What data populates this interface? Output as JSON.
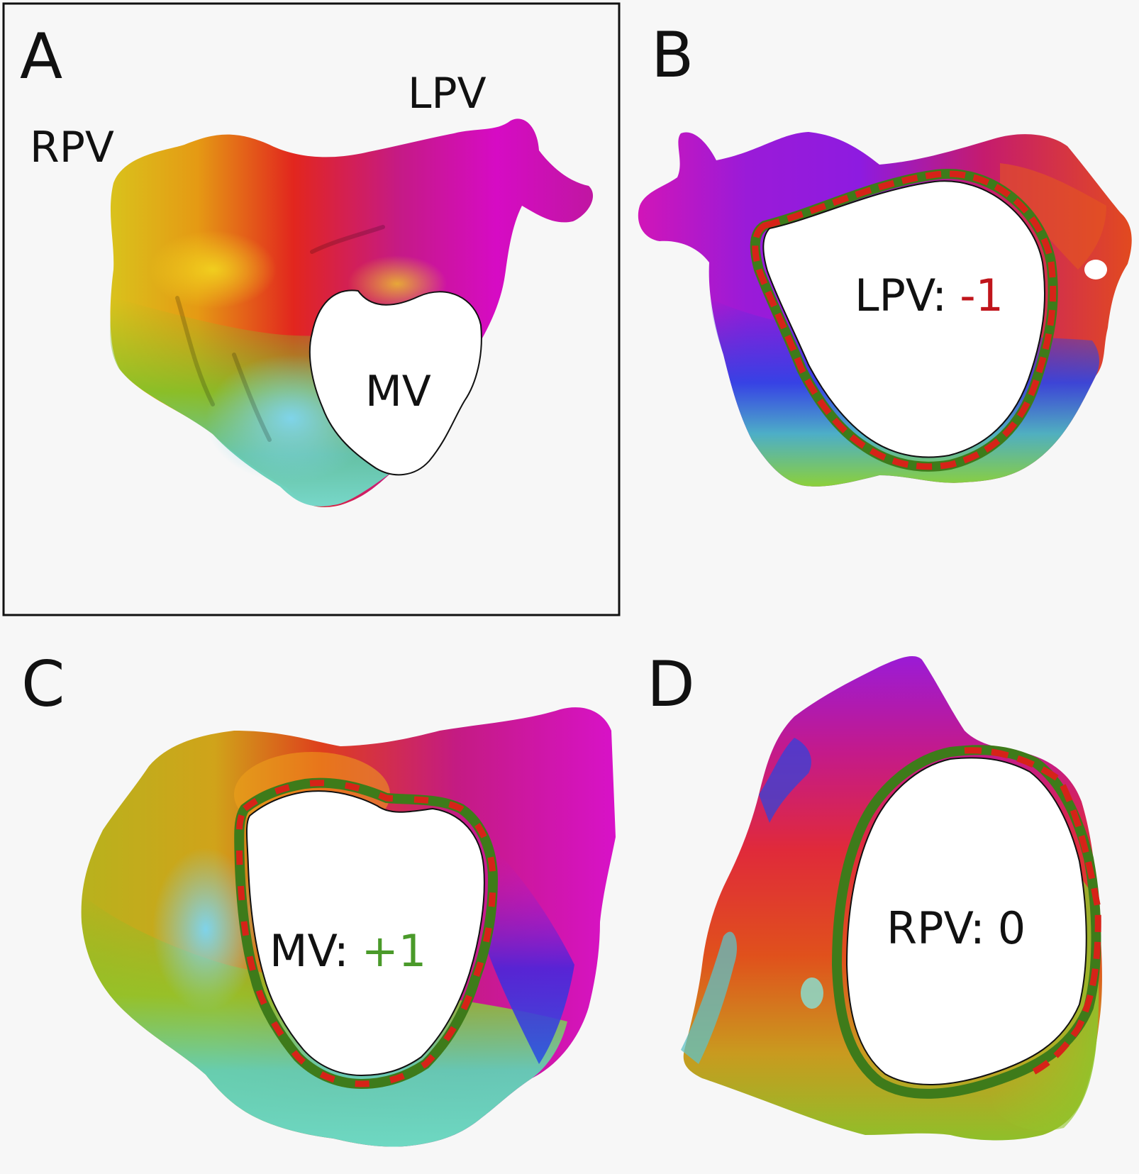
{
  "panels": {
    "a": {
      "letter": "A",
      "labels": {
        "rpv": "RPV",
        "lpv": "LPV",
        "mv": "MV"
      }
    },
    "b": {
      "letter": "B",
      "hole_name": "LPV:",
      "hole_value": "-1"
    },
    "c": {
      "letter": "C",
      "hole_name": "MV:",
      "hole_value": "+1"
    },
    "d": {
      "letter": "D",
      "hole_name": "RPV:",
      "hole_value": "0"
    }
  },
  "colors": {
    "negative": "#c0151b",
    "positive": "#4a9a2a",
    "neutral": "#111111",
    "arrow_red": "#d62318",
    "arrow_green": "#3e7b1a",
    "frame": "#111111"
  }
}
